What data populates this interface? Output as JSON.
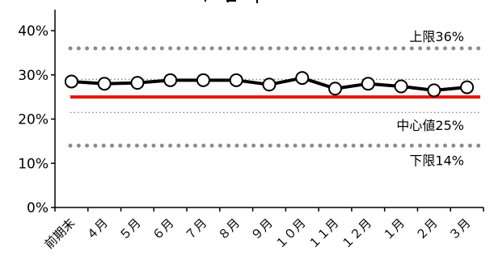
{
  "chart_data": {
    "type": "line",
    "title": "",
    "xlabel": "",
    "ylabel": "",
    "ylim": [
      0,
      40
    ],
    "y_ticks": [
      "0%",
      "10%",
      "20%",
      "30%",
      "40%"
    ],
    "categories": [
      "前期末",
      "４月",
      "５月",
      "６月",
      "７月",
      "８月",
      "９月",
      "１０月",
      "１１月",
      "１２月",
      "１月",
      "２月",
      "３月"
    ],
    "series": [
      {
        "values": [
          28.5,
          28.0,
          28.2,
          28.8,
          28.8,
          28.8,
          27.8,
          29.3,
          26.9,
          28.0,
          27.4,
          26.5,
          27.2
        ]
      }
    ],
    "reference_lines": [
      {
        "label": "上限36%",
        "value": 36,
        "style": "dotted-thick",
        "color": "#8c8c8c"
      },
      {
        "label": "中心値25%",
        "value": 25,
        "style": "solid",
        "color": "#e8140c"
      },
      {
        "label": "下限14%",
        "value": 14,
        "style": "dotted-thick",
        "color": "#8c8c8c"
      }
    ],
    "extra_lines": [
      {
        "value": 29.0,
        "style": "dotted-thin",
        "color": "#777777"
      },
      {
        "value": 21.5,
        "style": "dotted-thin",
        "color": "#777777"
      }
    ],
    "colors": {
      "series": "#000000",
      "marker_fill": "#ffffff"
    },
    "grid": false
  }
}
